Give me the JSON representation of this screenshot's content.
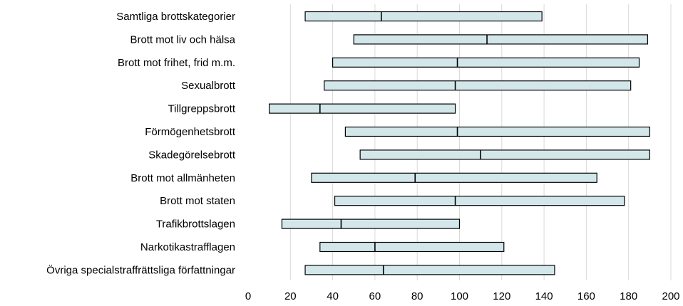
{
  "chart_data": {
    "type": "bar",
    "subtype": "floating-range-with-median",
    "orientation": "horizontal",
    "title": "",
    "xlabel": "",
    "ylabel": "",
    "xlim": [
      0,
      200
    ],
    "x_ticks": [
      0,
      20,
      40,
      60,
      80,
      100,
      120,
      140,
      160,
      180,
      200
    ],
    "grid": "vertical",
    "legend": "none",
    "colors": {
      "bar_fill": "#d3e7ea",
      "bar_stroke": "#000000",
      "grid": "#d9d9d9"
    },
    "categories": [
      "Samtliga brottskategorier",
      "Brott mot liv och hälsa",
      "Brott mot frihet, frid m.m.",
      "Sexualbrott",
      "Tillgreppsbrott",
      "Förmögenhetsbrott",
      "Skadegörelsebrott",
      "Brott mot allmänheten",
      "Brott mot staten",
      "Trafikbrottslagen",
      "Narkotikastrafflagen",
      "Övriga specialstraffrättsliga författningar"
    ],
    "low": [
      27,
      50,
      40,
      36,
      10,
      46,
      53,
      30,
      41,
      16,
      34,
      27
    ],
    "median": [
      63,
      113,
      99,
      98,
      34,
      99,
      110,
      79,
      98,
      44,
      60,
      64
    ],
    "high": [
      139,
      189,
      185,
      181,
      98,
      190,
      190,
      165,
      178,
      100,
      121,
      145
    ]
  }
}
